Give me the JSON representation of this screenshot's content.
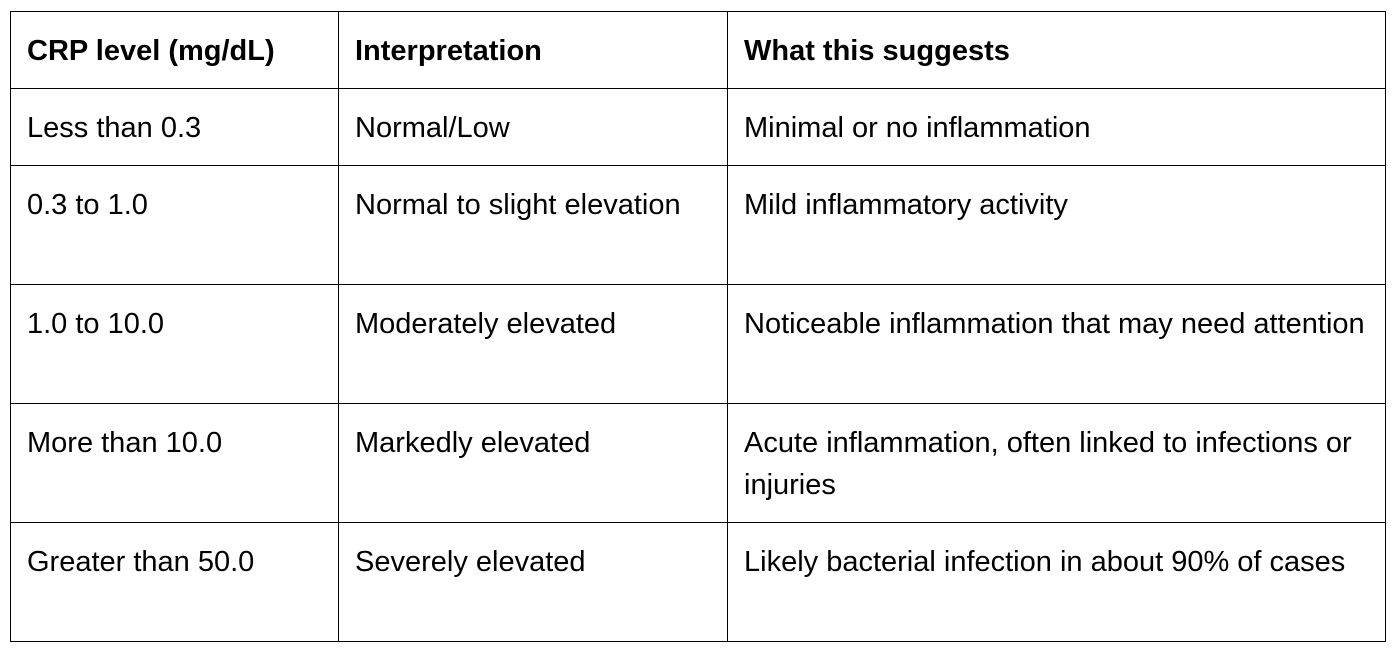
{
  "table": {
    "headers": [
      "CRP level (mg/dL)",
      "Interpretation",
      "What this suggests"
    ],
    "rows": [
      [
        "Less than 0.3",
        "Normal/Low",
        "Minimal or no inflammation"
      ],
      [
        "0.3 to 1.0",
        "Normal to slight elevation",
        "Mild inflammatory activity"
      ],
      [
        "1.0 to 10.0",
        "Moderately elevated",
        "Noticeable inflammation that may need attention"
      ],
      [
        "More than 10.0",
        "Markedly elevated",
        "Acute inflammation, often linked to infections or injuries"
      ],
      [
        "Greater than 50.0",
        "Severely elevated",
        "Likely bacterial infection in about 90% of cases"
      ]
    ]
  }
}
